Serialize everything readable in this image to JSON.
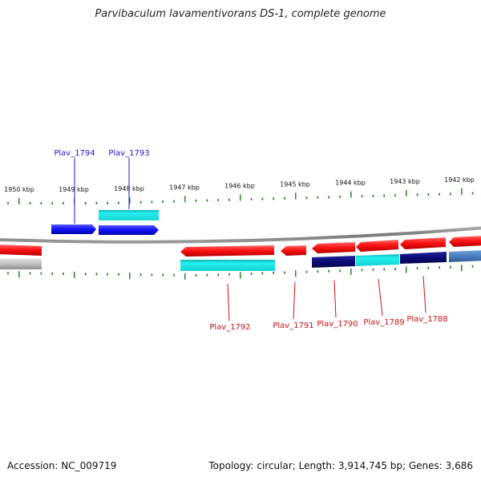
{
  "title": "Parvibaculum lavamentivorans DS-1, complete genome",
  "footer": {
    "accession": "Accession: NC_009719",
    "summary": "Topology: circular; Length: 3,914,745 bp; Genes: 3,686"
  },
  "colors": {
    "tick": "#1a7a1a",
    "label_forward": "#1a1acc",
    "label_reverse": "#cc1111",
    "backbone": "#8a8a8a",
    "gene_red": "#ff1a1a",
    "gene_blue": "#1a1aff",
    "gene_cyan": "#1fe6e6",
    "gene_navy": "#0d0d80",
    "gene_steel": "#4a7fc0",
    "gene_gray": "#bdbdbd"
  },
  "scale": {
    "kbp_labels": [
      "1950 kbp",
      "1949 kbp",
      "1948 kbp",
      "1947 kbp",
      "1946 kbp",
      "1945 kbp",
      "1944 kbp",
      "1943 kbp",
      "1942 kbp"
    ]
  },
  "genes": {
    "forward_labels": [
      "Plav_1794",
      "Plav_1793"
    ],
    "reverse_labels": [
      "Plav_1792",
      "Plav_1791",
      "Plav_1790",
      "Plav_1789",
      "Plav_1788"
    ]
  }
}
